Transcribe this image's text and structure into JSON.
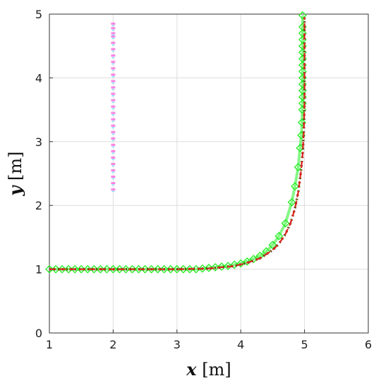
{
  "chart_data": {
    "type": "line",
    "xlabel": {
      "var": "x",
      "unit": " [m]"
    },
    "ylabel": {
      "var": "y",
      "unit": " [m]"
    },
    "xlim": [
      1,
      6
    ],
    "ylim": [
      0,
      5
    ],
    "xticks": [
      "1",
      "2",
      "3",
      "4",
      "5",
      "6"
    ],
    "yticks": [
      "0",
      "1",
      "2",
      "3",
      "4",
      "5"
    ],
    "grid": true,
    "series": [
      {
        "style": "green-diamond-markers",
        "color": "#22ee22",
        "x": [
          1.0,
          1.1,
          1.2,
          1.3,
          1.4,
          1.5,
          1.6,
          1.7,
          1.8,
          1.9,
          2.0,
          2.1,
          2.2,
          2.3,
          2.4,
          2.5,
          2.6,
          2.7,
          2.8,
          2.9,
          3.0,
          3.1,
          3.2,
          3.3,
          3.4,
          3.5,
          3.6,
          3.7,
          3.8,
          3.9,
          4.0,
          4.1,
          4.2,
          4.3,
          4.4,
          4.5,
          4.6,
          4.7,
          4.8,
          4.85,
          4.9,
          4.93,
          4.95,
          4.96,
          4.965,
          4.97,
          4.97,
          4.97,
          4.97,
          4.97,
          4.97,
          4.97,
          4.97,
          4.97,
          4.97,
          4.97,
          4.97,
          4.97,
          4.97
        ],
        "y": [
          1.0,
          1.0,
          1.0,
          1.0,
          1.0,
          1.0,
          1.0,
          1.0,
          1.0,
          1.0,
          1.0,
          1.0,
          1.0,
          1.0,
          1.0,
          1.0,
          1.0,
          1.0,
          1.0,
          1.0,
          1.0,
          1.0,
          1.0,
          1.0,
          1.01,
          1.02,
          1.03,
          1.04,
          1.05,
          1.07,
          1.09,
          1.12,
          1.16,
          1.21,
          1.28,
          1.38,
          1.52,
          1.72,
          2.05,
          2.3,
          2.6,
          2.9,
          3.1,
          3.3,
          3.5,
          3.6,
          3.7,
          3.8,
          3.9,
          4.0,
          4.1,
          4.2,
          4.3,
          4.4,
          4.5,
          4.6,
          4.7,
          4.8,
          4.98
        ]
      },
      {
        "style": "dark-dotted",
        "color": "#6b4a10",
        "x": [
          1.0,
          1.5,
          2.0,
          2.5,
          3.0,
          3.5,
          3.7,
          3.9,
          4.1,
          4.3,
          4.5,
          4.6,
          4.7,
          4.78,
          4.85,
          4.9,
          4.94,
          4.97,
          4.99,
          5.0,
          5.0,
          5.0
        ],
        "y": [
          1.0,
          1.0,
          1.0,
          1.0,
          1.0,
          1.01,
          1.03,
          1.05,
          1.1,
          1.17,
          1.3,
          1.4,
          1.55,
          1.72,
          1.95,
          2.2,
          2.5,
          2.8,
          3.2,
          3.6,
          4.3,
          4.95
        ]
      },
      {
        "style": "red-dashed",
        "color": "#e02020",
        "x": [
          1.0,
          1.5,
          2.0,
          2.5,
          3.0,
          3.5,
          3.7,
          3.9,
          4.1,
          4.3,
          4.5,
          4.6,
          4.7,
          4.78,
          4.85,
          4.9,
          4.94,
          4.97,
          4.99,
          5.0,
          5.0,
          5.0
        ],
        "y": [
          1.0,
          1.0,
          1.0,
          1.0,
          1.0,
          1.01,
          1.03,
          1.05,
          1.1,
          1.17,
          1.3,
          1.4,
          1.55,
          1.72,
          1.95,
          2.2,
          2.5,
          2.8,
          3.2,
          3.6,
          4.3,
          4.95
        ]
      },
      {
        "style": "magenta-cyan-dots",
        "color": "#ff66dd",
        "x": [
          2.0,
          2.0,
          2.0,
          2.0,
          2.0,
          2.0,
          2.0,
          2.0,
          2.0,
          2.0,
          2.0,
          2.0,
          2.0,
          2.0,
          2.0,
          2.0,
          2.0,
          2.0,
          2.0,
          2.0,
          2.0,
          2.0,
          2.0,
          2.0,
          2.0,
          2.0,
          2.0,
          2.0
        ],
        "y": [
          2.25,
          2.35,
          2.45,
          2.55,
          2.65,
          2.75,
          2.85,
          2.95,
          3.05,
          3.15,
          3.25,
          3.35,
          3.45,
          3.55,
          3.65,
          3.75,
          3.85,
          3.95,
          4.05,
          4.15,
          4.25,
          4.35,
          4.45,
          4.55,
          4.65,
          4.7,
          4.78,
          4.85
        ]
      }
    ]
  }
}
